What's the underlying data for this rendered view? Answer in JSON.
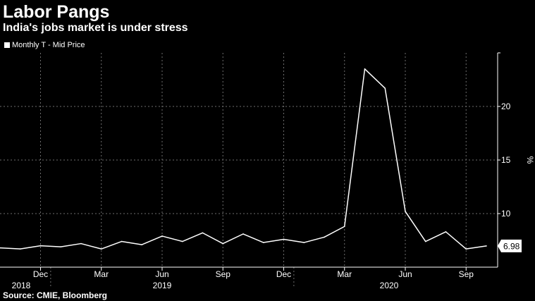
{
  "colors": {
    "background": "#000000",
    "line": "#ffffff",
    "grid": "#6e6e6e",
    "label_box": "#ffffff",
    "label_text": "#000000"
  },
  "chart_data": {
    "type": "line",
    "title": "Labor Pangs",
    "subtitle": "India's jobs market is under stress",
    "source": "Source: CMIE, Bloomberg",
    "ylabel": "%",
    "ylim": [
      5,
      25
    ],
    "y_ticks": [
      10,
      15,
      20
    ],
    "grid": true,
    "legend_position": "top-left",
    "x_month_ticks": [
      "Dec",
      "Mar",
      "Jun",
      "Sep",
      "Dec",
      "Mar",
      "Jun",
      "Sep"
    ],
    "year_labels": [
      "2018",
      "2019",
      "2020"
    ],
    "last_value_label": "6.98",
    "series": [
      {
        "name": "Monthly T - Mid Price",
        "x": [
          "2018-10",
          "2018-11",
          "2018-12",
          "2019-01",
          "2019-02",
          "2019-03",
          "2019-04",
          "2019-05",
          "2019-06",
          "2019-07",
          "2019-08",
          "2019-09",
          "2019-10",
          "2019-11",
          "2019-12",
          "2020-01",
          "2020-02",
          "2020-03",
          "2020-04",
          "2020-05",
          "2020-06",
          "2020-07",
          "2020-08",
          "2020-09",
          "2020-10"
        ],
        "values": [
          6.8,
          6.7,
          7.0,
          6.9,
          7.2,
          6.7,
          7.4,
          7.1,
          7.9,
          7.4,
          8.2,
          7.2,
          8.1,
          7.3,
          7.6,
          7.3,
          7.8,
          8.8,
          23.5,
          21.7,
          10.2,
          7.4,
          8.3,
          6.7,
          6.98
        ]
      }
    ]
  }
}
